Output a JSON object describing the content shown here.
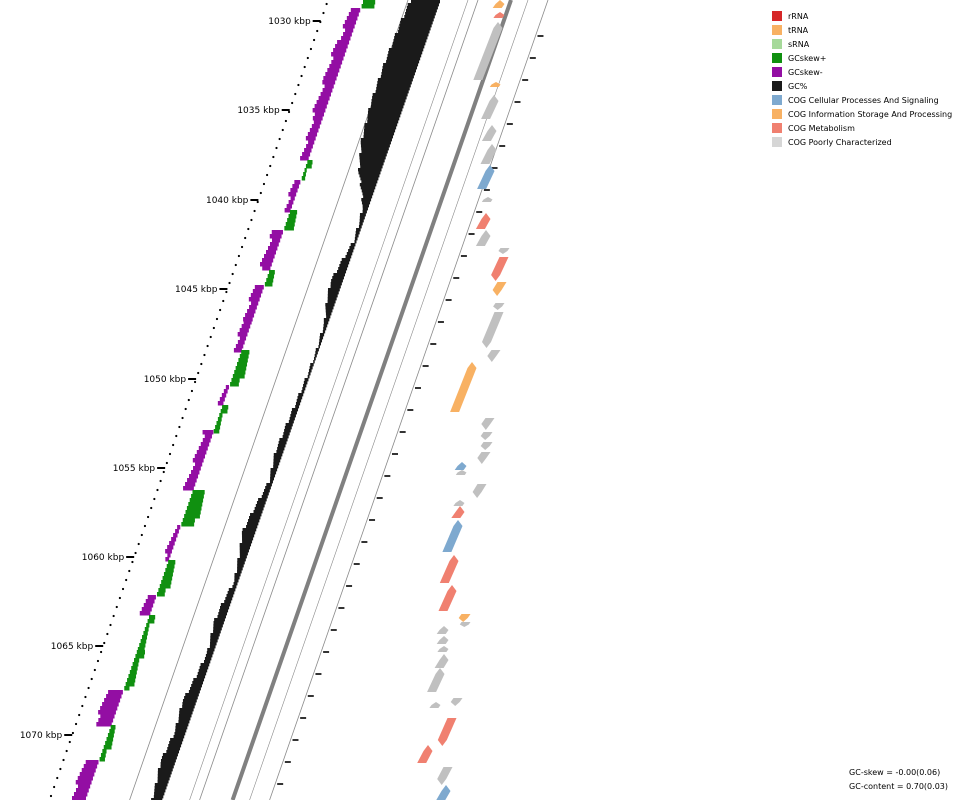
{
  "scale": {
    "unit_suffix": " kbp",
    "labels": [
      "1030 kbp",
      "1035 kbp",
      "1040 kbp",
      "1045 kbp",
      "1050 kbp",
      "1055 kbp",
      "1060 kbp",
      "1065 kbp",
      "1070 kbp"
    ]
  },
  "legend": {
    "items": [
      {
        "label": "rRNA",
        "color": "#d62728"
      },
      {
        "label": "tRNA",
        "color": "#f8b163"
      },
      {
        "label": "sRNA",
        "color": "#a6d99a"
      },
      {
        "label": "GCskew+",
        "color": "#109010"
      },
      {
        "label": "GCskew-",
        "color": "#930ea3"
      },
      {
        "label": "GC%",
        "color": "#1a1a1a"
      },
      {
        "label": "COG Cellular Processes And Signaling",
        "color": "#7ea9cf"
      },
      {
        "label": "COG Information Storage And Processing",
        "color": "#f8b163"
      },
      {
        "label": "COG Metabolism",
        "color": "#f08070"
      },
      {
        "label": "COG Poorly Characterized",
        "color": "#d6d6d6"
      }
    ]
  },
  "stats": {
    "gc_skew": "GC-skew = -0.00(0.06)",
    "gc_content": "GC-content = 0.70(0.03)"
  },
  "colors": {
    "default_feature": "#c0c0c0",
    "backbone": "#808080",
    "ring_line": "#8a8a8a"
  }
}
